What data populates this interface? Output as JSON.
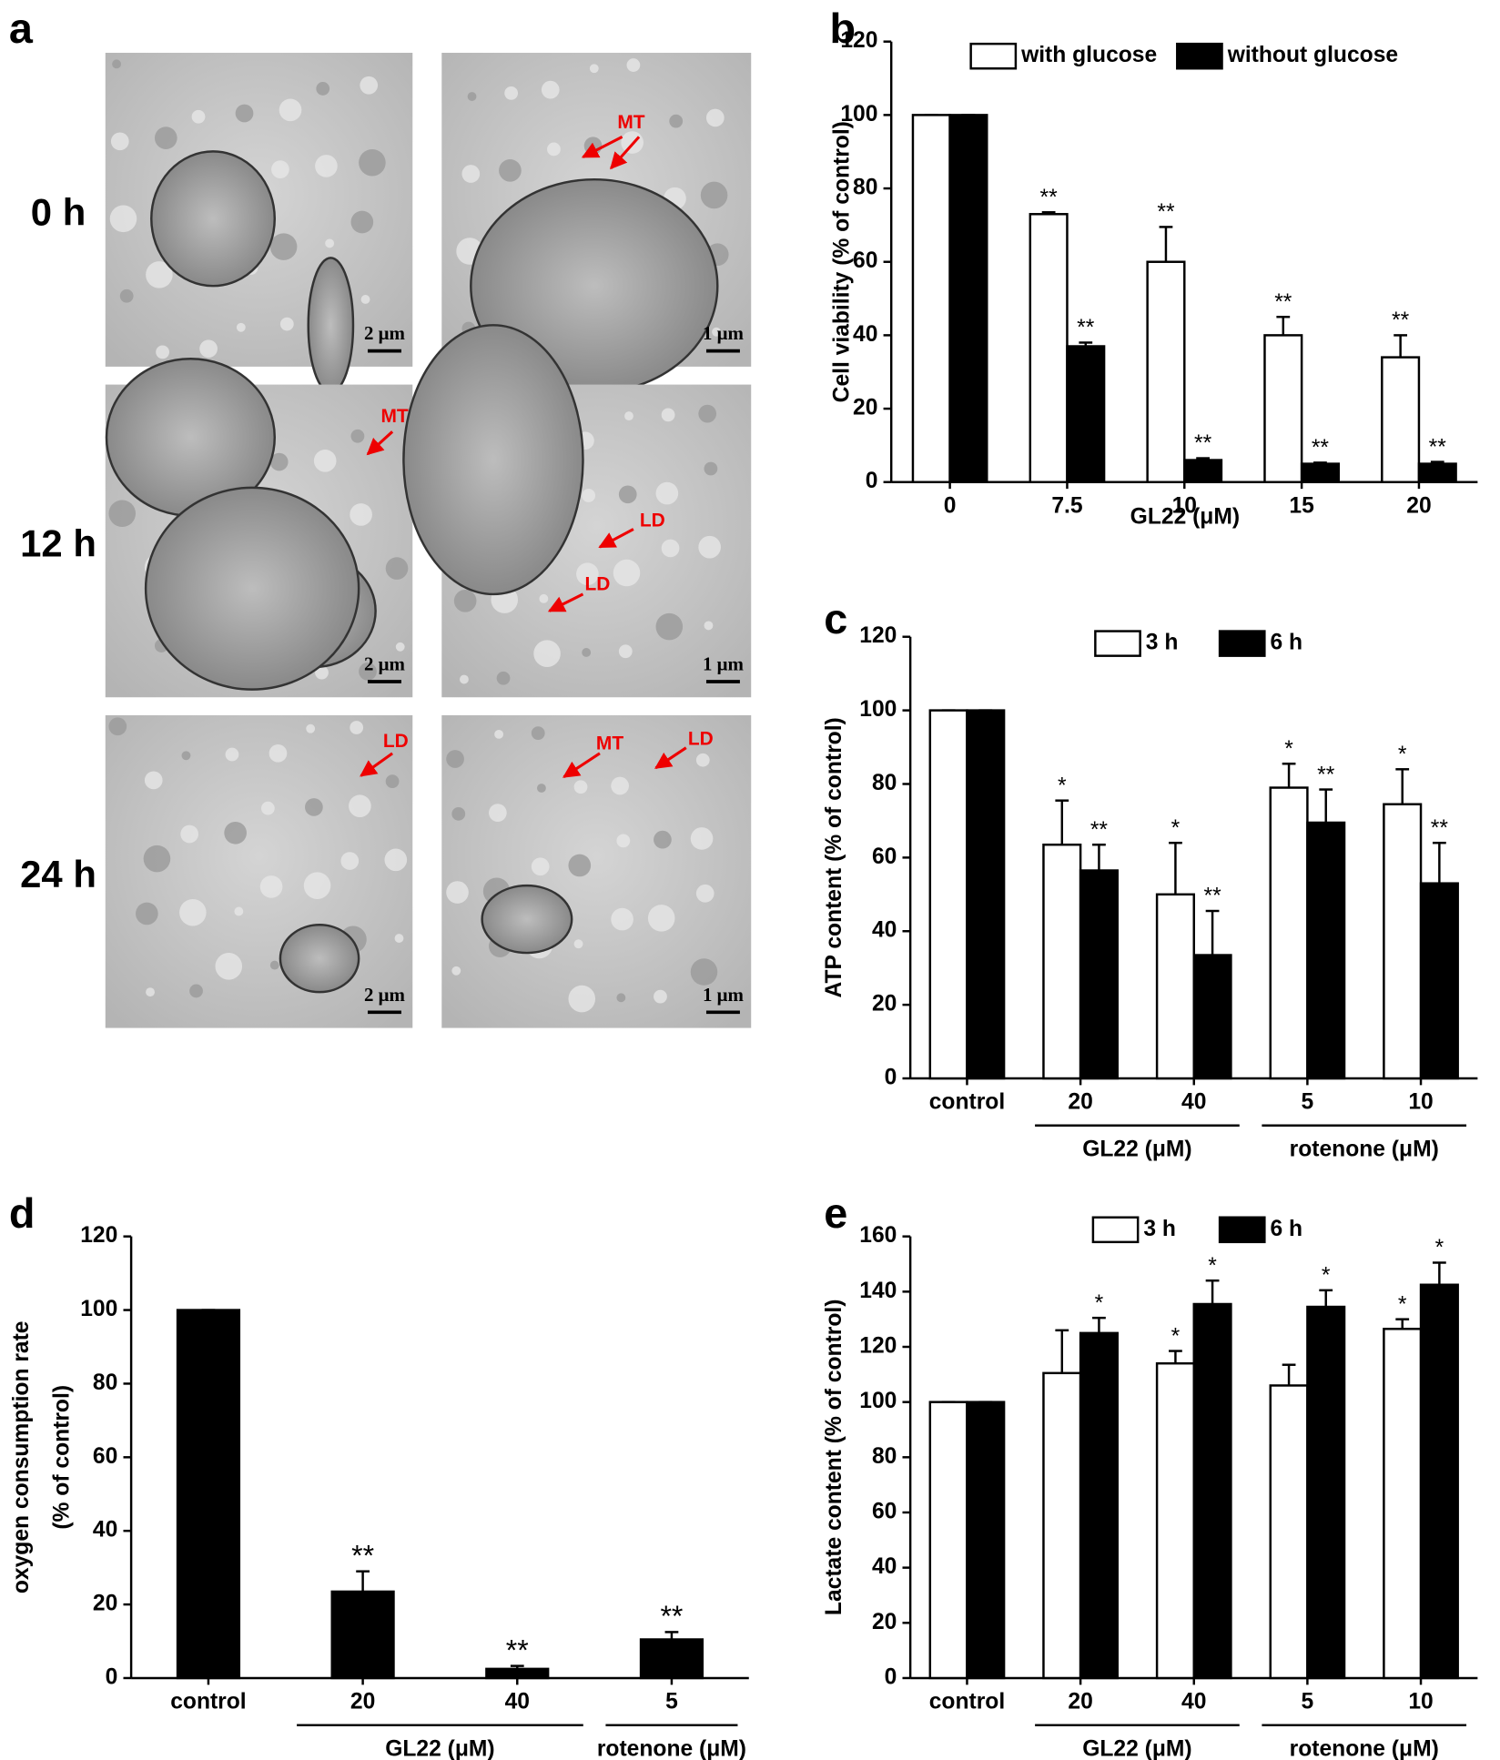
{
  "panel_a": {
    "label": "a",
    "rows": [
      {
        "time": "0 h",
        "images": [
          {
            "scale": "2 μm",
            "annotations": []
          },
          {
            "scale": "1 μm",
            "annotations": [
              "MT"
            ]
          }
        ]
      },
      {
        "time": "12 h",
        "images": [
          {
            "scale": "2 μm",
            "annotations": [
              "MT"
            ]
          },
          {
            "scale": "1 μm",
            "annotations": [
              "LD",
              "LD"
            ]
          }
        ]
      },
      {
        "time": "24 h",
        "images": [
          {
            "scale": "2 μm",
            "annotations": [
              "LD"
            ]
          },
          {
            "scale": "1 μm",
            "annotations": [
              "MT",
              "LD"
            ]
          }
        ]
      }
    ]
  },
  "chart_data": [
    {
      "type": "bar",
      "label": "b",
      "ylabel": "Cell viability (% of control)",
      "xlabel": "GL22 (μM)",
      "categories": [
        "0",
        "7.5",
        "10",
        "15",
        "20"
      ],
      "series": [
        {
          "name": "with glucose",
          "color": "#ffffff",
          "values": [
            100,
            73,
            60,
            40,
            34
          ],
          "errors": [
            0,
            0.5,
            9.5,
            5,
            6
          ],
          "significance": [
            null,
            "**",
            "**",
            "**",
            "**"
          ]
        },
        {
          "name": "without glucose",
          "color": "#000000",
          "values": [
            100,
            37,
            6,
            5,
            5
          ],
          "errors": [
            0,
            1,
            0.5,
            0.3,
            0.5
          ],
          "significance": [
            null,
            "**",
            "**",
            "**",
            "**"
          ]
        }
      ],
      "ylim": [
        0,
        120
      ],
      "yticks": [
        0,
        20,
        40,
        60,
        80,
        100,
        120
      ]
    },
    {
      "type": "bar",
      "label": "c",
      "ylabel": "ATP content (% of control)",
      "categories": [
        "control",
        "20",
        "40",
        "5",
        "10"
      ],
      "groups": [
        {
          "label": "GL22 (μM)",
          "span": [
            1,
            2
          ]
        },
        {
          "label": "rotenone (μM)",
          "span": [
            3,
            4
          ]
        }
      ],
      "series": [
        {
          "name": "3 h",
          "color": "#ffffff",
          "values": [
            100,
            63.5,
            50,
            79,
            74.5
          ],
          "errors": [
            0,
            12,
            14,
            6.5,
            9.5
          ],
          "significance": [
            null,
            "*",
            "*",
            "*",
            "*"
          ]
        },
        {
          "name": "6 h",
          "color": "#000000",
          "values": [
            100,
            56.5,
            33.5,
            69.5,
            53
          ],
          "errors": [
            0,
            7,
            12,
            9,
            11
          ],
          "significance": [
            null,
            "**",
            "**",
            "**",
            "**"
          ]
        }
      ],
      "ylim": [
        0,
        120
      ],
      "yticks": [
        0,
        20,
        40,
        60,
        80,
        100,
        120
      ]
    },
    {
      "type": "bar",
      "label": "d",
      "ylabel": [
        "oxygen consumption rate",
        "(% of control)"
      ],
      "categories": [
        "control",
        "20",
        "40",
        "5"
      ],
      "groups": [
        {
          "label": "GL22 (μM)",
          "span": [
            1,
            2
          ]
        },
        {
          "label": "rotenone (μM)",
          "span": [
            3,
            3
          ]
        }
      ],
      "color": "#000000",
      "values": [
        100,
        23.5,
        2.5,
        10.5
      ],
      "errors": [
        0,
        5.5,
        0.8,
        2
      ],
      "significance": [
        null,
        "**",
        "**",
        "**"
      ],
      "ylim": [
        0,
        120
      ],
      "yticks": [
        0,
        20,
        40,
        60,
        80,
        100,
        120
      ]
    },
    {
      "type": "bar",
      "label": "e",
      "ylabel": "Lactate content (% of control)",
      "categories": [
        "control",
        "20",
        "40",
        "5",
        "10"
      ],
      "groups": [
        {
          "label": "GL22 (μM)",
          "span": [
            1,
            2
          ]
        },
        {
          "label": "rotenone (μM)",
          "span": [
            3,
            4
          ]
        }
      ],
      "series": [
        {
          "name": "3 h",
          "color": "#ffffff",
          "values": [
            100,
            110.5,
            114,
            106,
            126.5
          ],
          "errors": [
            0,
            15.5,
            4.5,
            7.5,
            3.5
          ],
          "significance": [
            null,
            null,
            "*",
            null,
            "*"
          ]
        },
        {
          "name": "6 h",
          "color": "#000000",
          "values": [
            100,
            125,
            135.5,
            134.5,
            142.5
          ],
          "errors": [
            0,
            5.5,
            8.5,
            6,
            8
          ],
          "significance": [
            null,
            "*",
            "*",
            "*",
            "*"
          ]
        }
      ],
      "ylim": [
        0,
        160
      ],
      "yticks": [
        0,
        20,
        40,
        60,
        80,
        100,
        120,
        140,
        160
      ]
    }
  ]
}
